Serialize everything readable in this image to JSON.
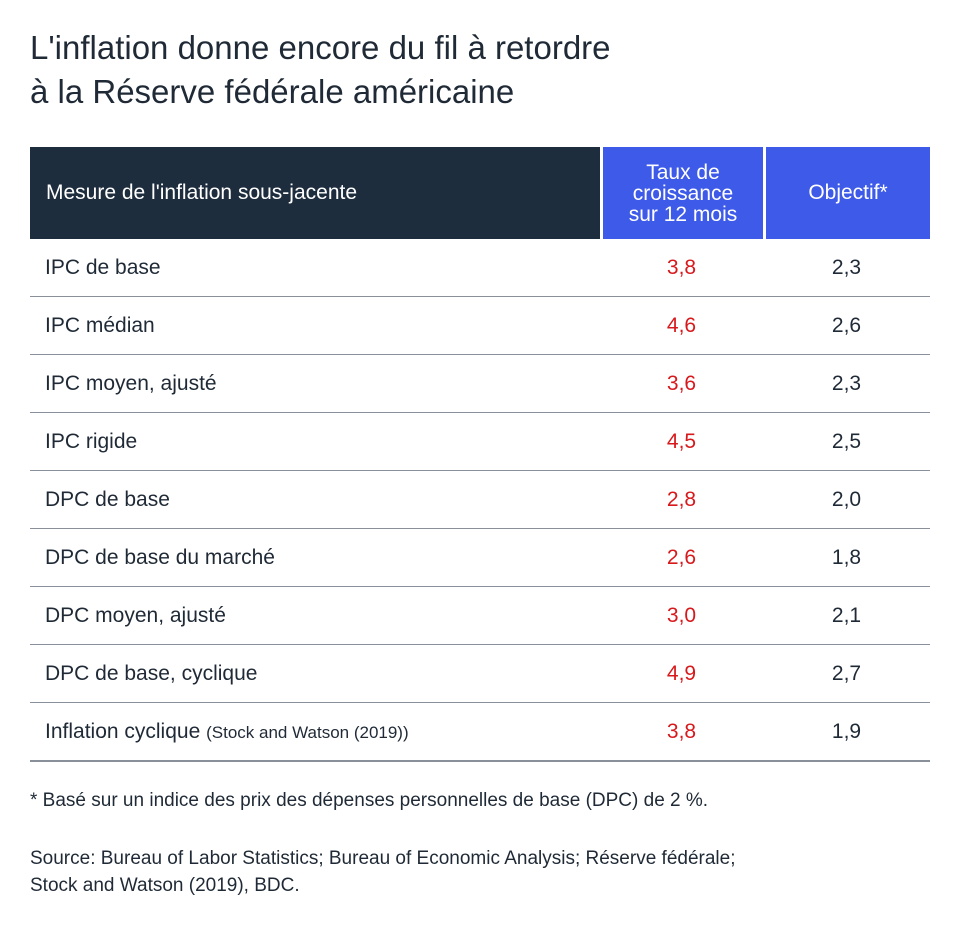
{
  "title": {
    "line1": "L'inflation donne encore du fil à retordre",
    "line2": "à la Réserve fédérale américaine"
  },
  "header": {
    "measure": "Mesure de l'inflation sous-jacente",
    "rate_lines": [
      "Taux de",
      "croissance",
      "sur 12 mois"
    ],
    "goal": "Objectif*"
  },
  "colors": {
    "header_dark": "#1e2d3e",
    "header_accent": "#3d5ae8",
    "rate_value": "#d7191c",
    "text": "#1f2a36"
  },
  "chart_data": {
    "type": "table",
    "columns": [
      "Mesure de l'inflation sous-jacente",
      "Taux de croissance sur 12 mois",
      "Objectif*"
    ],
    "rows": [
      {
        "label": "IPC de base",
        "note": "",
        "rate": "3,8",
        "goal": "2,3"
      },
      {
        "label": "IPC médian",
        "note": "",
        "rate": "4,6",
        "goal": "2,6"
      },
      {
        "label": "IPC moyen, ajusté",
        "note": "",
        "rate": "3,6",
        "goal": "2,3"
      },
      {
        "label": "IPC rigide",
        "note": "",
        "rate": "4,5",
        "goal": "2,5"
      },
      {
        "label": "DPC de base",
        "note": "",
        "rate": "2,8",
        "goal": "2,0"
      },
      {
        "label": "DPC de base du marché",
        "note": "",
        "rate": "2,6",
        "goal": "1,8"
      },
      {
        "label": "DPC moyen, ajusté",
        "note": "",
        "rate": "3,0",
        "goal": "2,1"
      },
      {
        "label": "DPC de base, cyclique",
        "note": "",
        "rate": "4,9",
        "goal": "2,7"
      },
      {
        "label": "Inflation cyclique",
        "note": "(Stock and Watson (2019))",
        "rate": "3,8",
        "goal": "1,9"
      }
    ]
  },
  "footnote": "* Basé sur un indice des prix des dépenses personnelles de base (DPC) de 2 %.",
  "source": {
    "line1": "Source: Bureau of Labor Statistics; Bureau of Economic Analysis; Réserve fédérale;",
    "line2": "Stock and Watson (2019), BDC."
  }
}
